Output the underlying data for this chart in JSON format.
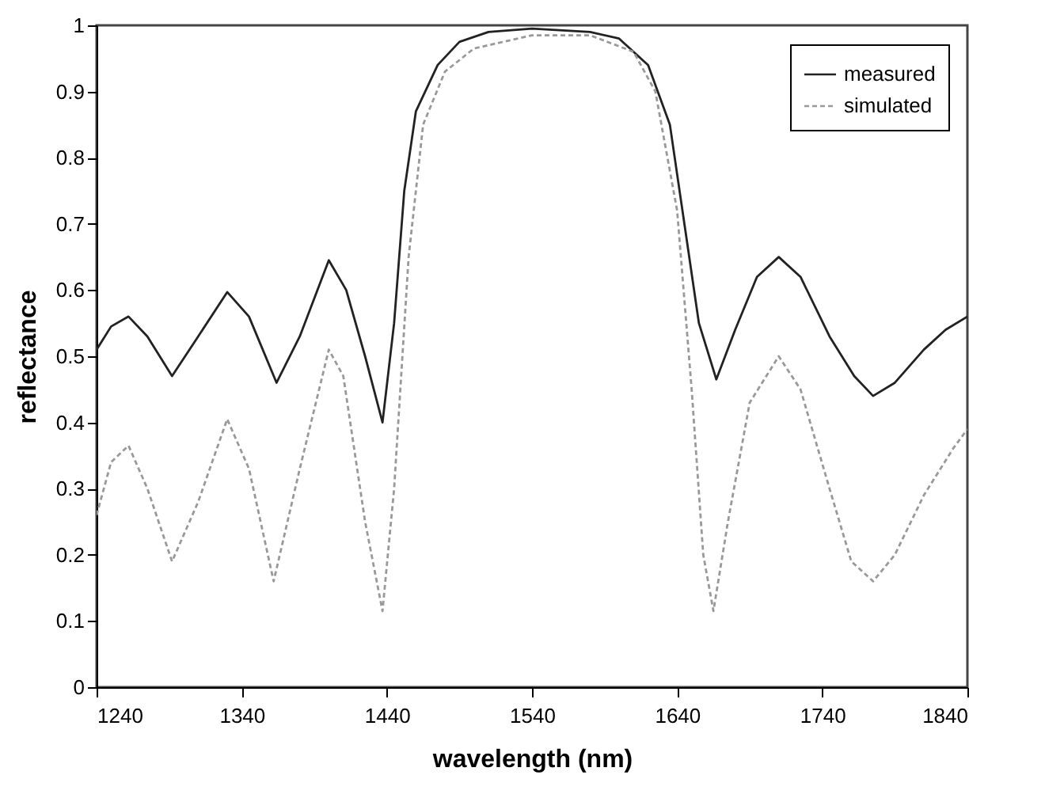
{
  "chart_data": {
    "type": "line",
    "xlabel": "wavelength (nm)",
    "ylabel": "reflectance",
    "xlim": [
      1240,
      1840
    ],
    "ylim": [
      0,
      1
    ],
    "xticks": [
      1240,
      1340,
      1440,
      1540,
      1640,
      1740,
      1840
    ],
    "yticks": [
      0,
      0.1,
      0.2,
      0.3,
      0.4,
      0.5,
      0.6,
      0.7,
      0.8,
      0.9,
      1
    ],
    "grid": false,
    "legend": "top right",
    "marker": "none",
    "series": [
      {
        "name": "measured",
        "color": "#222222",
        "line_style": "solid",
        "x": [
          1240,
          1250,
          1262,
          1275,
          1292,
          1310,
          1330,
          1345,
          1364,
          1380,
          1400,
          1412,
          1425,
          1437,
          1445,
          1452,
          1460,
          1475,
          1490,
          1510,
          1540,
          1580,
          1600,
          1620,
          1635,
          1645,
          1655,
          1667,
          1680,
          1695,
          1710,
          1725,
          1745,
          1762,
          1775,
          1790,
          1810,
          1825,
          1840
        ],
        "values": [
          0.51,
          0.545,
          0.56,
          0.53,
          0.47,
          0.53,
          0.597,
          0.56,
          0.46,
          0.53,
          0.645,
          0.6,
          0.5,
          0.4,
          0.55,
          0.75,
          0.87,
          0.94,
          0.975,
          0.99,
          0.995,
          0.99,
          0.98,
          0.94,
          0.85,
          0.7,
          0.55,
          0.465,
          0.54,
          0.62,
          0.65,
          0.62,
          0.53,
          0.47,
          0.44,
          0.46,
          0.51,
          0.54,
          0.56
        ]
      },
      {
        "name": "simulated",
        "color": "#999999",
        "line_style": "dashed",
        "x": [
          1240,
          1250,
          1262,
          1275,
          1292,
          1310,
          1330,
          1345,
          1362,
          1380,
          1400,
          1410,
          1425,
          1437,
          1445,
          1455,
          1465,
          1480,
          1500,
          1540,
          1580,
          1610,
          1625,
          1640,
          1650,
          1658,
          1665,
          1675,
          1690,
          1710,
          1725,
          1745,
          1760,
          1775,
          1790,
          1810,
          1830,
          1840
        ],
        "values": [
          0.26,
          0.34,
          0.365,
          0.3,
          0.19,
          0.28,
          0.405,
          0.33,
          0.16,
          0.33,
          0.51,
          0.47,
          0.25,
          0.115,
          0.3,
          0.65,
          0.85,
          0.93,
          0.965,
          0.985,
          0.985,
          0.96,
          0.9,
          0.72,
          0.45,
          0.2,
          0.115,
          0.25,
          0.43,
          0.5,
          0.45,
          0.3,
          0.19,
          0.16,
          0.2,
          0.29,
          0.36,
          0.39
        ]
      }
    ]
  }
}
